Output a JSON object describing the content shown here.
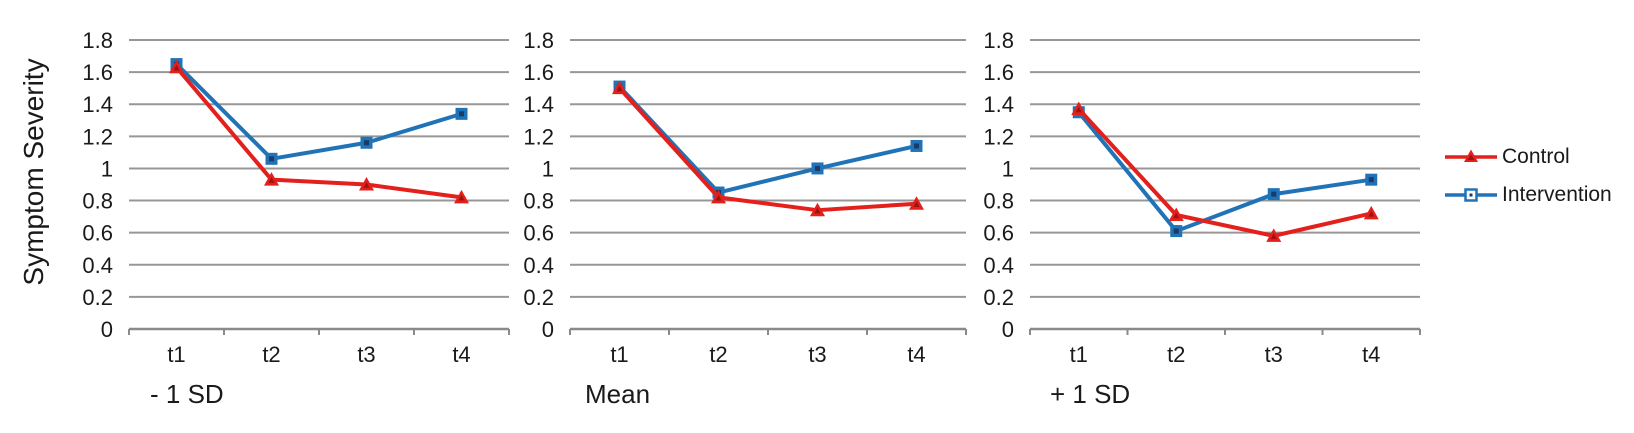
{
  "figure": {
    "y_axis_title": "Symptom Severity",
    "background_color": "#ffffff",
    "text_color": "#1a1a1a",
    "gridline_color": "#979797",
    "axis_color": "#8a8a8a",
    "legend": {
      "position": "right",
      "entries": [
        {
          "label": "Control",
          "marker": "triangle",
          "color": "#e3201b",
          "marker_inner": "#9c1310"
        },
        {
          "label": "Intervention",
          "marker": "square",
          "color": "#2173b8",
          "marker_inner": "#1b3a66"
        }
      ]
    }
  },
  "chart_data": [
    {
      "type": "line",
      "title": "- 1 SD",
      "categories": [
        "t1",
        "t2",
        "t3",
        "t4"
      ],
      "xlabel": "",
      "ylabel": "Symptom Severity",
      "ylim": [
        0,
        1.8
      ],
      "ytick_step": 0.2,
      "grid": true,
      "series": [
        {
          "name": "Control",
          "marker": "triangle",
          "color": "#e3201b",
          "marker_inner": "#9c1310",
          "values": [
            1.63,
            0.93,
            0.9,
            0.82
          ]
        },
        {
          "name": "Intervention",
          "marker": "square",
          "color": "#2173b8",
          "marker_inner": "#1b3a66",
          "values": [
            1.65,
            1.06,
            1.16,
            1.34
          ]
        }
      ]
    },
    {
      "type": "line",
      "title": "Mean",
      "categories": [
        "t1",
        "t2",
        "t3",
        "t4"
      ],
      "xlabel": "",
      "ylabel": "Symptom Severity",
      "ylim": [
        0,
        1.8
      ],
      "ytick_step": 0.2,
      "grid": true,
      "series": [
        {
          "name": "Control",
          "marker": "triangle",
          "color": "#e3201b",
          "marker_inner": "#9c1310",
          "values": [
            1.5,
            0.82,
            0.74,
            0.78
          ]
        },
        {
          "name": "Intervention",
          "marker": "square",
          "color": "#2173b8",
          "marker_inner": "#1b3a66",
          "values": [
            1.51,
            0.85,
            1.0,
            1.14
          ]
        }
      ]
    },
    {
      "type": "line",
      "title": "+ 1 SD",
      "categories": [
        "t1",
        "t2",
        "t3",
        "t4"
      ],
      "xlabel": "",
      "ylabel": "Symptom Severity",
      "ylim": [
        0,
        1.8
      ],
      "ytick_step": 0.2,
      "grid": true,
      "series": [
        {
          "name": "Control",
          "marker": "triangle",
          "color": "#e3201b",
          "marker_inner": "#9c1310",
          "values": [
            1.37,
            0.71,
            0.58,
            0.72
          ]
        },
        {
          "name": "Intervention",
          "marker": "square",
          "color": "#2173b8",
          "marker_inner": "#1b3a66",
          "values": [
            1.35,
            0.61,
            0.84,
            0.93
          ]
        }
      ]
    }
  ]
}
